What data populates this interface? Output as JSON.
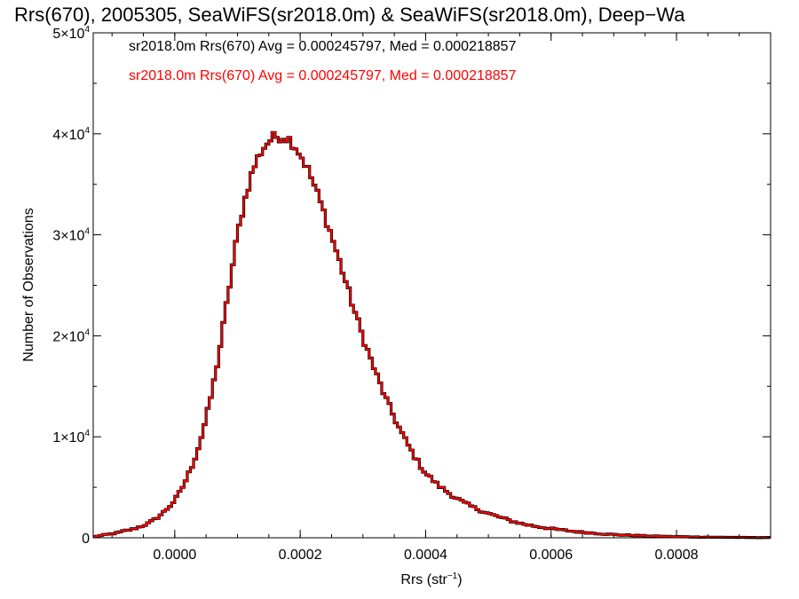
{
  "chart_data": {
    "type": "histogram",
    "title": "Rrs(670), 2005305, SeaWiFS(sr2018.0m) & SeaWiFS(sr2018.0m), Deep−Wa",
    "xlabel_base": "Rrs (str",
    "xlabel_exp": "−1",
    "xlabel_close": ")",
    "ylabel": "Number of Observations",
    "xlim": [
      -0.00013,
      0.00095
    ],
    "ylim": [
      0,
      50000
    ],
    "x_ticks": [
      {
        "value": 0.0,
        "label": "0.0000"
      },
      {
        "value": 0.0002,
        "label": "0.0002"
      },
      {
        "value": 0.0004,
        "label": "0.0004"
      },
      {
        "value": 0.0006,
        "label": "0.0006"
      },
      {
        "value": 0.0008,
        "label": "0.0008"
      }
    ],
    "y_ticks": [
      {
        "value": 0,
        "label": "0",
        "exp": ""
      },
      {
        "value": 10000,
        "label": "1×10",
        "exp": "4"
      },
      {
        "value": 20000,
        "label": "2×10",
        "exp": "4"
      },
      {
        "value": 30000,
        "label": "3×10",
        "exp": "4"
      },
      {
        "value": 40000,
        "label": "4×10",
        "exp": "4"
      },
      {
        "value": 50000,
        "label": "5×10",
        "exp": "4"
      }
    ],
    "annotations": [
      {
        "text": "sr2018.0m Rrs(670) Avg = 0.000245797, Med = 0.000218857",
        "color": "#000000"
      },
      {
        "text": "sr2018.0m Rrs(670) Avg = 0.000245797, Med = 0.000218857",
        "color": "#ff0000"
      }
    ],
    "series": [
      {
        "color": "#000000"
      },
      {
        "color": "#ff0000"
      }
    ],
    "bin_width": 5e-06,
    "x": [
      -0.00013,
      -0.00012,
      -0.00011,
      -0.0001,
      -9e-05,
      -8e-05,
      -7e-05,
      -6e-05,
      -5e-05,
      -4e-05,
      -3e-05,
      -2e-05,
      -1e-05,
      0.0,
      1e-05,
      2e-05,
      3e-05,
      4e-05,
      5e-05,
      6e-05,
      7e-05,
      8e-05,
      9e-05,
      0.0001,
      0.00011,
      0.00012,
      0.00013,
      0.00014,
      0.00015,
      0.00016,
      0.00017,
      0.00018,
      0.00019,
      0.0002,
      0.00021,
      0.00022,
      0.00023,
      0.00024,
      0.00025,
      0.00026,
      0.00027,
      0.00028,
      0.00029,
      0.0003,
      0.00031,
      0.00032,
      0.00033,
      0.00034,
      0.00035,
      0.00036,
      0.00037,
      0.00038,
      0.00039,
      0.0004,
      0.00042,
      0.00044,
      0.00046,
      0.00048,
      0.0005,
      0.00052,
      0.00054,
      0.00056,
      0.00058,
      0.0006,
      0.00062,
      0.00064,
      0.00066,
      0.00068,
      0.0007,
      0.00072,
      0.00074,
      0.00076,
      0.00078,
      0.0008,
      0.00082,
      0.00084,
      0.00086,
      0.00088,
      0.0009,
      0.00092,
      0.00095
    ],
    "y": [
      100,
      200,
      300,
      400,
      500,
      700,
      800,
      1000,
      1200,
      1500,
      1900,
      2400,
      3000,
      3700,
      4700,
      6000,
      7500,
      9400,
      11800,
      14600,
      18000,
      22000,
      26000,
      30000,
      33000,
      35500,
      37300,
      38500,
      39300,
      39700,
      39800,
      39600,
      39000,
      38000,
      36800,
      35300,
      33600,
      31800,
      29900,
      27900,
      25900,
      23800,
      21800,
      19900,
      18100,
      16400,
      14800,
      13300,
      11900,
      10600,
      9400,
      8300,
      7300,
      6400,
      5200,
      4300,
      3500,
      2900,
      2400,
      2000,
      1600,
      1300,
      1100,
      900,
      750,
      600,
      500,
      400,
      320,
      260,
      210,
      170,
      140,
      110,
      90,
      70,
      55,
      45,
      35,
      25,
      20
    ]
  }
}
